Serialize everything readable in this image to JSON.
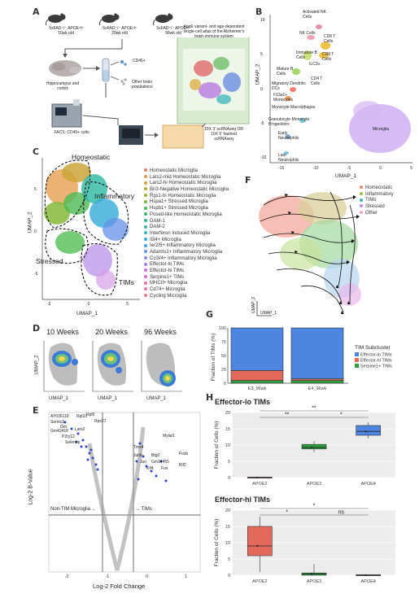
{
  "panels": {
    "A": "A",
    "B": "B",
    "C": "C",
    "D": "D",
    "E": "E",
    "F": "F",
    "G": "G",
    "H": "H"
  },
  "panelA": {
    "mice": [
      {
        "geno": "5xFAD⁺/⁻ APOEˣ/ˣ",
        "age": "10wk old"
      },
      {
        "geno": "5xFAD⁺/⁻ APOEˣ/ˣ",
        "age": "20wk old"
      },
      {
        "geno": "5xFAD⁺/⁻ APOEˣ/ˣ",
        "age": "96wk old"
      }
    ],
    "hippocampus": "Hippocampus and cortex",
    "cd45": "CD45+",
    "other": "Other brain populations",
    "facs": "FACS: CD45+ cells",
    "seq": "10X 3' scRNAseq OR 10X 5' hashed scRNAseq",
    "atlas": "ApoE variant- and age-dependent single-cell atlas of the Alzheimer's brain-immune system"
  },
  "panelB": {
    "xlabel": "UMAP_1",
    "ylabel": "UMAP_2",
    "xticks": [
      "-15",
      "-10",
      "-5",
      "0",
      "5"
    ],
    "yticks": [
      "10",
      "5",
      "0",
      "-5",
      "-10"
    ],
    "labels": [
      "Activated NK Cells",
      "NK Cells",
      "CD8 T Cells",
      "Immature B Cells",
      "CD8 T Cells",
      "ILC2s",
      "Mature B Cells",
      "CD4 T Cells",
      "Migratory Dendritic DCs",
      "F13a1+ Monocytes",
      "Monocyte Macrophages",
      "Granulocyte-Monocyte Progenitors",
      "Early Neutrophils",
      "Microglia",
      "Late Neutrophils"
    ]
  },
  "panelC": {
    "xlabel": "UMAP_1",
    "ylabel": "UMAP_2",
    "xticks": [
      "-5",
      "0",
      "5"
    ],
    "yticks": [
      "5",
      "0",
      "-5"
    ],
    "regions": [
      "Homeostatic",
      "Inflammatory",
      "Stressed",
      "TIMs"
    ],
    "legend": [
      {
        "name": "Homeostatic Microglia",
        "color": "#e8845c"
      },
      {
        "name": "Lars2-mid Homeostatic Microglia",
        "color": "#e09a44"
      },
      {
        "name": "Lars2-hi Homeostatic Microglia",
        "color": "#cda53a"
      },
      {
        "name": "Bri3-Negative Homeostatic Microglia",
        "color": "#b4ad30"
      },
      {
        "name": "Rgs1-hi Homeostatic Microglia",
        "color": "#98b42e"
      },
      {
        "name": "Hspa1+ Stressed Microglia",
        "color": "#74b836"
      },
      {
        "name": "Hspb1+ Stressed Microglia",
        "color": "#48b94a"
      },
      {
        "name": "Posed-like Homeostatic Microglia",
        "color": "#2fba6a"
      },
      {
        "name": "DAM-1",
        "color": "#2cba88"
      },
      {
        "name": "DAM-2",
        "color": "#2db9a3"
      },
      {
        "name": "Interferon Induced Microglia",
        "color": "#2fb4bf"
      },
      {
        "name": "Il34+ Microglia",
        "color": "#33acd5"
      },
      {
        "name": "Ier2/5+ Inflammatory Microglia",
        "color": "#3ea0e4"
      },
      {
        "name": "Adamts1+ Inflammatory Microglia",
        "color": "#6492ea"
      },
      {
        "name": "Ccl3/4+ Inflammatory Microglia",
        "color": "#8b84ea"
      },
      {
        "name": "Effector-lo TIMs",
        "color": "#a97ae6"
      },
      {
        "name": "Effector-hi TIMs",
        "color": "#c470dc"
      },
      {
        "name": "Serpine1+ TIMs",
        "color": "#d96ac9"
      },
      {
        "name": "MHCII+ Microglia",
        "color": "#e86ab0"
      },
      {
        "name": "Cd74+ Microglia",
        "color": "#ef6f95"
      },
      {
        "name": "Cycling Microglia",
        "color": "#f0767a"
      }
    ]
  },
  "panelD": {
    "titles": [
      "10 Weeks",
      "20 Weeks",
      "96 Weeks"
    ],
    "xlabel": "UMAP_1",
    "ylabel": "UMAP_2"
  },
  "panelE": {
    "xlabel": "Log-2 Fold Change",
    "ylabel": "Log-2 B-Value",
    "left_label": "Non-TIM Microglia ←",
    "right_label": "→ TIMs",
    "xticks": [
      "-2",
      "-1",
      "0",
      "1"
    ],
    "genes_left": [
      "AY036118",
      "Serinc3",
      "Gm42418",
      "Rpl10",
      "Gm",
      "Lars2",
      "P2ry12",
      "Selenop",
      "Rpl9",
      "Rps27"
    ],
    "genes_right": [
      "Mylat1",
      "Tmx4",
      "Junb",
      "Btg2",
      "Jun",
      "Gm34455",
      "Fosb",
      "Klf4",
      "Fos",
      "Klf2"
    ]
  },
  "panelF": {
    "xlabel": "UMAP_1",
    "ylabel": "UMAP_2",
    "legend": [
      {
        "name": "Homeostatic",
        "color": "#f08070"
      },
      {
        "name": "Inflammatory",
        "color": "#9bc23a"
      },
      {
        "name": "TIMs",
        "color": "#2fb7b0"
      },
      {
        "name": "Stressed",
        "color": "#c58be0"
      },
      {
        "name": "Other",
        "color": "#f2a0c8"
      }
    ]
  },
  "chart_data": [
    {
      "type": "bar",
      "title": "",
      "ylabel": "Fraction of TIMs (%)",
      "categories": [
        "E3_96wk",
        "E4_96wk"
      ],
      "yticks": [
        "100",
        "75",
        "50",
        "25",
        "0"
      ],
      "ylim": [
        0,
        100
      ],
      "legend_title": "TIM Subcluster",
      "series": [
        {
          "name": "Serpine1+ TIMs",
          "color": "#2ea043",
          "values": [
            5,
            5
          ]
        },
        {
          "name": "Effector-hi TIMs",
          "color": "#e3695b",
          "values": [
            18,
            3
          ]
        },
        {
          "name": "Effector-lo TIMs",
          "color": "#4c86e0",
          "values": [
            77,
            92
          ]
        }
      ]
    },
    {
      "type": "box",
      "title": "Effector-lo TIMs",
      "ylabel": "Fraction of Cells (%)",
      "categories": [
        "APOE2",
        "APOE3",
        "APOE4"
      ],
      "yticks": [
        "20",
        "15",
        "10",
        "5",
        "0"
      ],
      "ylim": [
        0,
        20
      ],
      "colors": [
        "#e3695b",
        "#2ea043",
        "#4c86e0"
      ],
      "boxes": [
        {
          "q1": 0,
          "median": 0,
          "q3": 0,
          "min": 0,
          "max": 0
        },
        {
          "q1": 8.8,
          "median": 9.3,
          "q3": 10.2,
          "min": 7.8,
          "max": 11.2
        },
        {
          "q1": 13,
          "median": 14.2,
          "q3": 16,
          "min": 12,
          "max": 17
        }
      ],
      "sig": [
        "**",
        "**",
        "*"
      ]
    },
    {
      "type": "box",
      "title": "Effector-hi TIMs",
      "ylabel": "Fraction of Cells (%)",
      "categories": [
        "APOE2",
        "APOE3",
        "APOE4"
      ],
      "yticks": [
        "20",
        "15",
        "10",
        "5",
        "0"
      ],
      "ylim": [
        0,
        20
      ],
      "colors": [
        "#e3695b",
        "#2ea043",
        "#4c86e0"
      ],
      "boxes": [
        {
          "q1": 6,
          "median": 9,
          "q3": 15,
          "min": 1,
          "max": 18
        },
        {
          "q1": 0,
          "median": 0.4,
          "q3": 0.7,
          "min": 0,
          "max": 3.5
        },
        {
          "q1": 0,
          "median": 0,
          "q3": 0,
          "min": 0,
          "max": 0
        }
      ],
      "sig": [
        "*",
        "*",
        "ns"
      ]
    }
  ]
}
